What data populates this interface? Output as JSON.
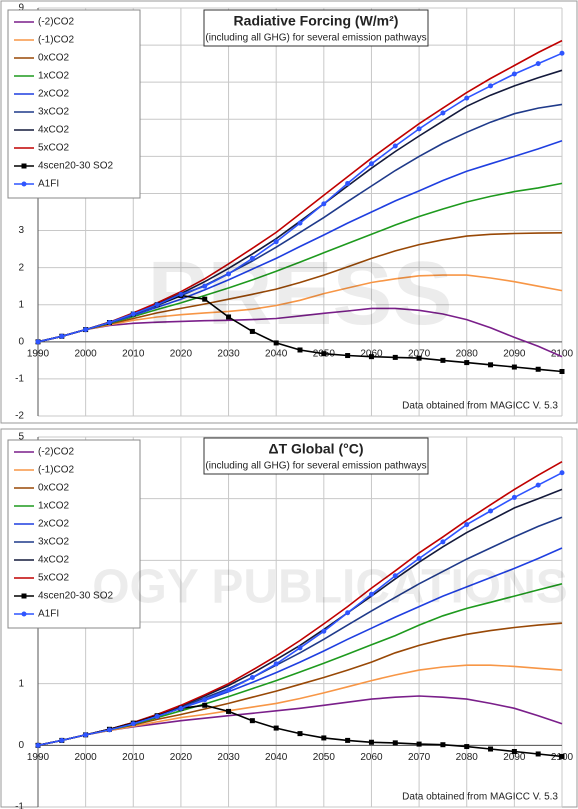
{
  "watermark": [
    "PRESS",
    "OGY PUBLICATIONS"
  ],
  "chart_data": [
    {
      "type": "line",
      "title": "Radiative Forcing (W/m²)",
      "subtitle": "(including all GHG) for several emission pathways",
      "annotation": "Data obtained from MAGICC V. 5.3",
      "grid": true,
      "legend": "upper left",
      "x": [
        1990,
        1995,
        2000,
        2005,
        2010,
        2015,
        2020,
        2025,
        2030,
        2035,
        2040,
        2045,
        2050,
        2055,
        2060,
        2065,
        2070,
        2075,
        2080,
        2085,
        2090,
        2095,
        2100
      ],
      "xlim": [
        1990,
        2100
      ],
      "xticks": [
        1990,
        2000,
        2010,
        2020,
        2030,
        2040,
        2050,
        2060,
        2070,
        2080,
        2090,
        2100
      ],
      "ylim": [
        -2,
        9
      ],
      "yticks": [
        -2,
        -1,
        0,
        1,
        2,
        3,
        4,
        5,
        6,
        7,
        8,
        9
      ],
      "series": [
        {
          "name": "(-2)CO2",
          "color": "#7a1f8a",
          "values": [
            0,
            0.15,
            0.33,
            0.44,
            0.5,
            0.53,
            0.55,
            0.57,
            0.58,
            0.6,
            0.63,
            0.7,
            0.77,
            0.83,
            0.9,
            0.9,
            0.85,
            0.75,
            0.6,
            0.38,
            0.12,
            -0.12,
            -0.4
          ]
        },
        {
          "name": "(-1)CO2",
          "color": "#f79646",
          "values": [
            0,
            0.15,
            0.33,
            0.46,
            0.58,
            0.67,
            0.73,
            0.78,
            0.82,
            0.88,
            0.98,
            1.12,
            1.3,
            1.45,
            1.6,
            1.7,
            1.78,
            1.8,
            1.8,
            1.72,
            1.62,
            1.5,
            1.38
          ]
        },
        {
          "name": "0xCO2",
          "color": "#984806",
          "values": [
            0,
            0.15,
            0.33,
            0.48,
            0.63,
            0.78,
            0.9,
            1.02,
            1.15,
            1.28,
            1.42,
            1.6,
            1.8,
            2.02,
            2.25,
            2.45,
            2.62,
            2.75,
            2.85,
            2.9,
            2.92,
            2.93,
            2.94
          ]
        },
        {
          "name": "1xCO2",
          "color": "#1e9a1e",
          "values": [
            0,
            0.15,
            0.33,
            0.5,
            0.68,
            0.87,
            1.05,
            1.25,
            1.45,
            1.67,
            1.9,
            2.15,
            2.4,
            2.65,
            2.9,
            3.15,
            3.38,
            3.58,
            3.77,
            3.92,
            4.05,
            4.15,
            4.27
          ]
        },
        {
          "name": "2xCO2",
          "color": "#1f3fe0",
          "values": [
            0,
            0.15,
            0.33,
            0.51,
            0.71,
            0.93,
            1.15,
            1.4,
            1.67,
            1.96,
            2.25,
            2.57,
            2.88,
            3.2,
            3.5,
            3.8,
            4.07,
            4.35,
            4.6,
            4.8,
            5.0,
            5.2,
            5.42
          ]
        },
        {
          "name": "3xCO2",
          "color": "#1f3a8a",
          "values": [
            0,
            0.15,
            0.33,
            0.52,
            0.74,
            0.98,
            1.24,
            1.52,
            1.84,
            2.18,
            2.55,
            2.95,
            3.35,
            3.78,
            4.2,
            4.62,
            5.0,
            5.35,
            5.65,
            5.92,
            6.15,
            6.3,
            6.4
          ]
        },
        {
          "name": "4xCO2",
          "color": "#141a3c",
          "values": [
            0,
            0.15,
            0.33,
            0.53,
            0.76,
            1.02,
            1.3,
            1.62,
            1.98,
            2.37,
            2.78,
            3.25,
            3.72,
            4.2,
            4.68,
            5.13,
            5.55,
            5.95,
            6.35,
            6.65,
            6.9,
            7.12,
            7.32
          ]
        },
        {
          "name": "5xCO2",
          "color": "#c00000",
          "values": [
            0,
            0.15,
            0.33,
            0.53,
            0.78,
            1.05,
            1.35,
            1.7,
            2.1,
            2.52,
            2.95,
            3.45,
            3.95,
            4.45,
            4.95,
            5.42,
            5.88,
            6.3,
            6.72,
            7.1,
            7.45,
            7.8,
            8.12
          ]
        },
        {
          "name": "4scen20-30 SO2",
          "color": "#000000",
          "marker": "square",
          "values": [
            0,
            0.15,
            0.33,
            0.52,
            0.75,
            1.0,
            1.25,
            1.15,
            0.67,
            0.28,
            -0.03,
            -0.22,
            -0.32,
            -0.37,
            -0.4,
            -0.42,
            -0.44,
            -0.5,
            -0.56,
            -0.62,
            -0.68,
            -0.74,
            -0.8
          ]
        },
        {
          "name": "A1FI",
          "color": "#2f55ff",
          "marker": "circle",
          "values": [
            0,
            0.15,
            0.33,
            0.52,
            0.75,
            1.0,
            1.28,
            1.5,
            1.83,
            2.25,
            2.7,
            3.2,
            3.72,
            4.27,
            4.8,
            5.28,
            5.74,
            6.17,
            6.57,
            6.9,
            7.22,
            7.5,
            7.78
          ]
        }
      ]
    },
    {
      "type": "line",
      "title": "ΔT Global (°C)",
      "subtitle": "(including all GHG) for several emission pathways",
      "annotation": "Data obtained from MAGICC V. 5.3",
      "grid": true,
      "legend": "upper left",
      "x": [
        1990,
        1995,
        2000,
        2005,
        2010,
        2015,
        2020,
        2025,
        2030,
        2035,
        2040,
        2045,
        2050,
        2055,
        2060,
        2065,
        2070,
        2075,
        2080,
        2085,
        2090,
        2095,
        2100
      ],
      "xlim": [
        1990,
        2100
      ],
      "xticks": [
        1990,
        2000,
        2010,
        2020,
        2030,
        2040,
        2050,
        2060,
        2070,
        2080,
        2090,
        2100
      ],
      "ylim": [
        -1,
        5
      ],
      "yticks": [
        -1,
        0,
        1,
        2,
        3,
        4,
        5
      ],
      "series": [
        {
          "name": "(-2)CO2",
          "color": "#7a1f8a",
          "values": [
            0,
            0.08,
            0.17,
            0.24,
            0.3,
            0.35,
            0.4,
            0.44,
            0.48,
            0.52,
            0.56,
            0.6,
            0.65,
            0.7,
            0.75,
            0.78,
            0.8,
            0.78,
            0.75,
            0.68,
            0.6,
            0.48,
            0.35
          ]
        },
        {
          "name": "(-1)CO2",
          "color": "#f79646",
          "values": [
            0,
            0.08,
            0.17,
            0.24,
            0.31,
            0.38,
            0.45,
            0.5,
            0.56,
            0.62,
            0.68,
            0.76,
            0.85,
            0.95,
            1.05,
            1.14,
            1.22,
            1.27,
            1.3,
            1.3,
            1.28,
            1.25,
            1.22
          ]
        },
        {
          "name": "0xCO2",
          "color": "#984806",
          "values": [
            0,
            0.08,
            0.17,
            0.25,
            0.33,
            0.42,
            0.5,
            0.59,
            0.68,
            0.78,
            0.88,
            0.99,
            1.1,
            1.22,
            1.35,
            1.5,
            1.62,
            1.72,
            1.8,
            1.86,
            1.91,
            1.95,
            1.98
          ]
        },
        {
          "name": "1xCO2",
          "color": "#1e9a1e",
          "values": [
            0,
            0.08,
            0.17,
            0.25,
            0.34,
            0.45,
            0.56,
            0.67,
            0.79,
            0.92,
            1.05,
            1.19,
            1.33,
            1.48,
            1.63,
            1.78,
            1.95,
            2.1,
            2.22,
            2.32,
            2.42,
            2.52,
            2.62
          ]
        },
        {
          "name": "2xCO2",
          "color": "#1f3fe0",
          "values": [
            0,
            0.08,
            0.17,
            0.26,
            0.35,
            0.47,
            0.6,
            0.73,
            0.87,
            1.02,
            1.18,
            1.35,
            1.53,
            1.72,
            1.9,
            2.08,
            2.25,
            2.42,
            2.57,
            2.72,
            2.87,
            3.03,
            3.2
          ]
        },
        {
          "name": "3xCO2",
          "color": "#1f3a8a",
          "values": [
            0,
            0.08,
            0.17,
            0.26,
            0.36,
            0.48,
            0.62,
            0.77,
            0.92,
            1.1,
            1.3,
            1.5,
            1.72,
            1.95,
            2.18,
            2.4,
            2.62,
            2.82,
            3.02,
            3.2,
            3.38,
            3.55,
            3.7
          ]
        },
        {
          "name": "4xCO2",
          "color": "#141a3c",
          "values": [
            0,
            0.08,
            0.17,
            0.26,
            0.37,
            0.5,
            0.64,
            0.8,
            0.97,
            1.17,
            1.39,
            1.62,
            1.88,
            2.15,
            2.42,
            2.7,
            2.97,
            3.22,
            3.45,
            3.65,
            3.85,
            4.0,
            4.15
          ]
        },
        {
          "name": "5xCO2",
          "color": "#c00000",
          "values": [
            0,
            0.08,
            0.17,
            0.26,
            0.37,
            0.5,
            0.65,
            0.82,
            1.0,
            1.22,
            1.45,
            1.7,
            1.97,
            2.25,
            2.55,
            2.83,
            3.12,
            3.38,
            3.65,
            3.9,
            4.15,
            4.38,
            4.6
          ]
        },
        {
          "name": "4scen20-30 SO2",
          "color": "#000000",
          "marker": "square",
          "values": [
            0,
            0.08,
            0.17,
            0.26,
            0.36,
            0.48,
            0.6,
            0.65,
            0.55,
            0.4,
            0.28,
            0.19,
            0.12,
            0.08,
            0.05,
            0.04,
            0.02,
            0.01,
            -0.02,
            -0.06,
            -0.1,
            -0.14,
            -0.18
          ]
        },
        {
          "name": "A1FI",
          "color": "#2f55ff",
          "marker": "circle",
          "values": [
            0,
            0.08,
            0.17,
            0.25,
            0.35,
            0.47,
            0.6,
            0.74,
            0.9,
            1.1,
            1.32,
            1.58,
            1.85,
            2.15,
            2.45,
            2.75,
            3.03,
            3.3,
            3.58,
            3.8,
            4.02,
            4.22,
            4.42
          ]
        }
      ]
    }
  ]
}
